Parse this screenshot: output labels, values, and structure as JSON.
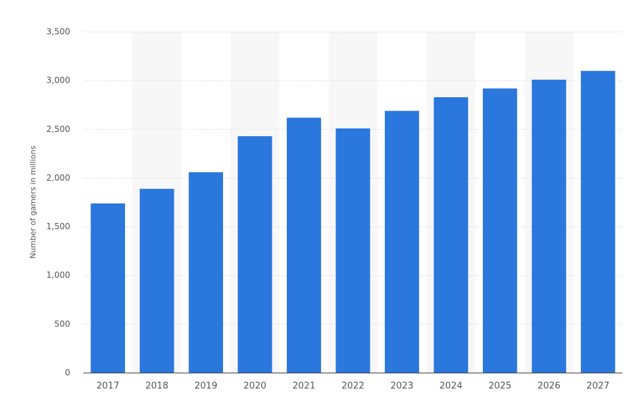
{
  "chart_data": {
    "type": "bar",
    "y_label": "Number of gamers in millions",
    "categories": [
      "2017",
      "2018",
      "2019",
      "2020",
      "2021",
      "2022",
      "2023",
      "2024",
      "2025",
      "2026",
      "2027"
    ],
    "values": [
      1740,
      1890,
      2060,
      2430,
      2620,
      2510,
      2690,
      2830,
      2920,
      3010,
      3100
    ],
    "color": "#2a77dd",
    "ylim": [
      0,
      3500
    ],
    "yticks": [
      0,
      500,
      {
        "value": 1000,
        "label": "1,000"
      },
      {
        "value": 1500,
        "label": "1,500"
      },
      {
        "value": 2000,
        "label": "2,000"
      },
      {
        "value": 2500,
        "label": "2,500"
      },
      {
        "value": 3000,
        "label": "3,000"
      },
      {
        "value": 3500,
        "label": "3,500"
      }
    ],
    "grid": true
  }
}
